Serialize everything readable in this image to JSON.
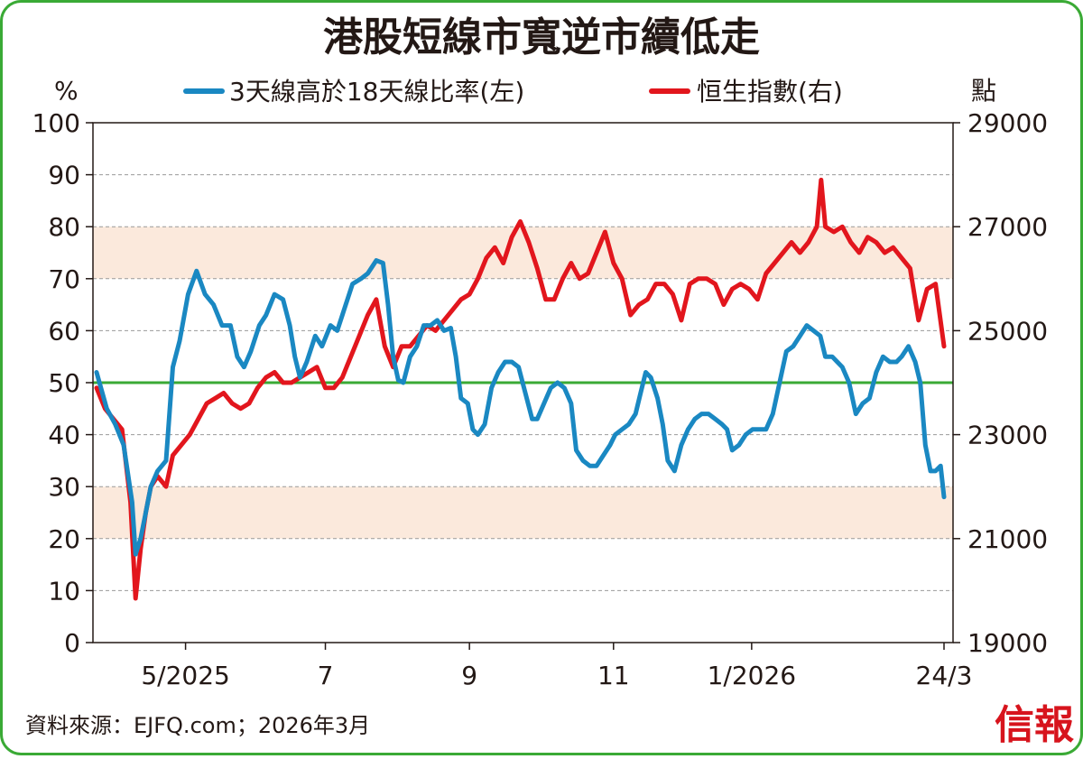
{
  "title": "港股短線市寬逆市續低走",
  "source": "資料來源：EJFQ.com；2026年3月",
  "logo": "信報",
  "colors": {
    "breadth": "#1a88c2",
    "hsi": "#e2161d",
    "threshold": "#3aaa35",
    "band": "#fbe9dc",
    "frame": "#3aaa35"
  },
  "chart_data": {
    "type": "line",
    "title": "港股短線市寬逆市續低走",
    "left_axis": {
      "unit": "%",
      "min": 0,
      "max": 100,
      "ticks": [
        "0",
        "10",
        "20",
        "30",
        "40",
        "50",
        "60",
        "70",
        "80",
        "90",
        "100"
      ]
    },
    "right_axis": {
      "unit": "點",
      "min": 19000,
      "max": 29000,
      "ticks": [
        "19000",
        "21000",
        "23000",
        "25000",
        "27000",
        "29000"
      ]
    },
    "x_ticks": [
      {
        "label": "5/2025",
        "t": 0.105
      },
      {
        "label": "7",
        "t": 0.27
      },
      {
        "label": "9",
        "t": 0.44
      },
      {
        "label": "11",
        "t": 0.61
      },
      {
        "label": "1/2026",
        "t": 0.773
      },
      {
        "label": "24/3",
        "t": 1.0
      }
    ],
    "grid": true,
    "threshold_line": 50,
    "shaded_bands": [
      [
        20,
        30
      ],
      [
        70,
        80
      ]
    ],
    "legend": {
      "position": "top",
      "items": [
        "3天線高於18天線比率(左)",
        "恒生指數(右)"
      ]
    },
    "series": [
      {
        "name": "3天線高於18天線比率(左)",
        "axis": "left",
        "points": [
          [
            0.0,
            52
          ],
          [
            0.012,
            45
          ],
          [
            0.022,
            42
          ],
          [
            0.032,
            38
          ],
          [
            0.042,
            27
          ],
          [
            0.046,
            17
          ],
          [
            0.052,
            20
          ],
          [
            0.058,
            25
          ],
          [
            0.064,
            30
          ],
          [
            0.072,
            33
          ],
          [
            0.082,
            35
          ],
          [
            0.09,
            53
          ],
          [
            0.098,
            58
          ],
          [
            0.108,
            67
          ],
          [
            0.118,
            71.5
          ],
          [
            0.128,
            67
          ],
          [
            0.138,
            65
          ],
          [
            0.148,
            61
          ],
          [
            0.158,
            61
          ],
          [
            0.166,
            55
          ],
          [
            0.174,
            53
          ],
          [
            0.182,
            56
          ],
          [
            0.192,
            61
          ],
          [
            0.2,
            63
          ],
          [
            0.21,
            67
          ],
          [
            0.22,
            66
          ],
          [
            0.228,
            61
          ],
          [
            0.234,
            55
          ],
          [
            0.24,
            51
          ],
          [
            0.248,
            54
          ],
          [
            0.258,
            59
          ],
          [
            0.266,
            57
          ],
          [
            0.276,
            61
          ],
          [
            0.284,
            60
          ],
          [
            0.292,
            64
          ],
          [
            0.302,
            69
          ],
          [
            0.312,
            70
          ],
          [
            0.32,
            71
          ],
          [
            0.33,
            73.5
          ],
          [
            0.338,
            73
          ],
          [
            0.344,
            65
          ],
          [
            0.35,
            55
          ],
          [
            0.356,
            50.5
          ],
          [
            0.362,
            50
          ],
          [
            0.37,
            55
          ],
          [
            0.378,
            57
          ],
          [
            0.386,
            61
          ],
          [
            0.394,
            61
          ],
          [
            0.402,
            62
          ],
          [
            0.41,
            60
          ],
          [
            0.418,
            60.5
          ],
          [
            0.424,
            55
          ],
          [
            0.43,
            47
          ],
          [
            0.438,
            46
          ],
          [
            0.444,
            41
          ],
          [
            0.45,
            40
          ],
          [
            0.458,
            42
          ],
          [
            0.466,
            49
          ],
          [
            0.474,
            52
          ],
          [
            0.482,
            54
          ],
          [
            0.49,
            54
          ],
          [
            0.498,
            53
          ],
          [
            0.506,
            48
          ],
          [
            0.514,
            43
          ],
          [
            0.52,
            43
          ],
          [
            0.528,
            46
          ],
          [
            0.536,
            49
          ],
          [
            0.544,
            50
          ],
          [
            0.552,
            49
          ],
          [
            0.56,
            46
          ],
          [
            0.566,
            37
          ],
          [
            0.574,
            35
          ],
          [
            0.582,
            34
          ],
          [
            0.59,
            34
          ],
          [
            0.598,
            36
          ],
          [
            0.606,
            38
          ],
          [
            0.612,
            40
          ],
          [
            0.62,
            41
          ],
          [
            0.628,
            42
          ],
          [
            0.636,
            44
          ],
          [
            0.642,
            48
          ],
          [
            0.648,
            52
          ],
          [
            0.654,
            51
          ],
          [
            0.662,
            47
          ],
          [
            0.668,
            42
          ],
          [
            0.674,
            35
          ],
          [
            0.682,
            33
          ],
          [
            0.69,
            38
          ],
          [
            0.698,
            41
          ],
          [
            0.706,
            43
          ],
          [
            0.714,
            44
          ],
          [
            0.722,
            44
          ],
          [
            0.73,
            43
          ],
          [
            0.738,
            42
          ],
          [
            0.744,
            41
          ],
          [
            0.75,
            37
          ],
          [
            0.758,
            38
          ],
          [
            0.766,
            40
          ],
          [
            0.774,
            41
          ],
          [
            0.782,
            41
          ],
          [
            0.79,
            41
          ],
          [
            0.798,
            44
          ],
          [
            0.806,
            50
          ],
          [
            0.814,
            56
          ],
          [
            0.822,
            57
          ],
          [
            0.83,
            59
          ],
          [
            0.838,
            61
          ],
          [
            0.846,
            60
          ],
          [
            0.854,
            59
          ],
          [
            0.86,
            55
          ],
          [
            0.868,
            55
          ],
          [
            0.874,
            54
          ],
          [
            0.88,
            53
          ],
          [
            0.888,
            50
          ],
          [
            0.896,
            44
          ],
          [
            0.904,
            46
          ],
          [
            0.912,
            47
          ],
          [
            0.92,
            52
          ],
          [
            0.928,
            55
          ],
          [
            0.936,
            54
          ],
          [
            0.944,
            54
          ],
          [
            0.95,
            55
          ],
          [
            0.958,
            57
          ],
          [
            0.966,
            54
          ],
          [
            0.972,
            50
          ],
          [
            0.978,
            38
          ],
          [
            0.984,
            33
          ],
          [
            0.99,
            33
          ],
          [
            0.996,
            34
          ],
          [
            1.0,
            28
          ]
        ]
      },
      {
        "name": "恒生指數(右)",
        "axis": "right",
        "points": [
          [
            0.0,
            23900
          ],
          [
            0.01,
            23500
          ],
          [
            0.02,
            23300
          ],
          [
            0.03,
            23100
          ],
          [
            0.04,
            21700
          ],
          [
            0.046,
            19850
          ],
          [
            0.052,
            20800
          ],
          [
            0.058,
            21500
          ],
          [
            0.064,
            22000
          ],
          [
            0.072,
            22200
          ],
          [
            0.082,
            22000
          ],
          [
            0.09,
            22600
          ],
          [
            0.1,
            22800
          ],
          [
            0.11,
            23000
          ],
          [
            0.12,
            23300
          ],
          [
            0.13,
            23600
          ],
          [
            0.14,
            23700
          ],
          [
            0.15,
            23800
          ],
          [
            0.16,
            23600
          ],
          [
            0.17,
            23500
          ],
          [
            0.18,
            23600
          ],
          [
            0.19,
            23900
          ],
          [
            0.2,
            24100
          ],
          [
            0.21,
            24200
          ],
          [
            0.22,
            24000
          ],
          [
            0.23,
            24000
          ],
          [
            0.24,
            24100
          ],
          [
            0.25,
            24200
          ],
          [
            0.26,
            24300
          ],
          [
            0.27,
            23900
          ],
          [
            0.28,
            23900
          ],
          [
            0.29,
            24100
          ],
          [
            0.3,
            24500
          ],
          [
            0.31,
            24900
          ],
          [
            0.32,
            25300
          ],
          [
            0.33,
            25600
          ],
          [
            0.34,
            24700
          ],
          [
            0.35,
            24300
          ],
          [
            0.36,
            24700
          ],
          [
            0.37,
            24700
          ],
          [
            0.38,
            24900
          ],
          [
            0.39,
            25100
          ],
          [
            0.4,
            25000
          ],
          [
            0.41,
            25200
          ],
          [
            0.42,
            25400
          ],
          [
            0.43,
            25600
          ],
          [
            0.44,
            25700
          ],
          [
            0.45,
            26000
          ],
          [
            0.46,
            26400
          ],
          [
            0.47,
            26600
          ],
          [
            0.48,
            26300
          ],
          [
            0.49,
            26800
          ],
          [
            0.5,
            27100
          ],
          [
            0.51,
            26700
          ],
          [
            0.52,
            26200
          ],
          [
            0.53,
            25600
          ],
          [
            0.54,
            25600
          ],
          [
            0.55,
            26000
          ],
          [
            0.56,
            26300
          ],
          [
            0.57,
            26000
          ],
          [
            0.58,
            26100
          ],
          [
            0.59,
            26500
          ],
          [
            0.6,
            26900
          ],
          [
            0.61,
            26300
          ],
          [
            0.62,
            26000
          ],
          [
            0.63,
            25300
          ],
          [
            0.64,
            25500
          ],
          [
            0.65,
            25600
          ],
          [
            0.66,
            25900
          ],
          [
            0.67,
            25900
          ],
          [
            0.68,
            25700
          ],
          [
            0.69,
            25200
          ],
          [
            0.7,
            25900
          ],
          [
            0.71,
            26000
          ],
          [
            0.72,
            26000
          ],
          [
            0.73,
            25900
          ],
          [
            0.74,
            25500
          ],
          [
            0.75,
            25800
          ],
          [
            0.76,
            25900
          ],
          [
            0.77,
            25800
          ],
          [
            0.78,
            25600
          ],
          [
            0.79,
            26100
          ],
          [
            0.8,
            26300
          ],
          [
            0.81,
            26500
          ],
          [
            0.82,
            26700
          ],
          [
            0.83,
            26500
          ],
          [
            0.84,
            26700
          ],
          [
            0.85,
            27000
          ],
          [
            0.855,
            27900
          ],
          [
            0.86,
            27000
          ],
          [
            0.87,
            26900
          ],
          [
            0.88,
            27000
          ],
          [
            0.89,
            26700
          ],
          [
            0.9,
            26500
          ],
          [
            0.91,
            26800
          ],
          [
            0.92,
            26700
          ],
          [
            0.93,
            26500
          ],
          [
            0.94,
            26600
          ],
          [
            0.95,
            26400
          ],
          [
            0.96,
            26200
          ],
          [
            0.97,
            25200
          ],
          [
            0.98,
            25800
          ],
          [
            0.99,
            25900
          ],
          [
            1.0,
            24700
          ]
        ]
      }
    ]
  }
}
